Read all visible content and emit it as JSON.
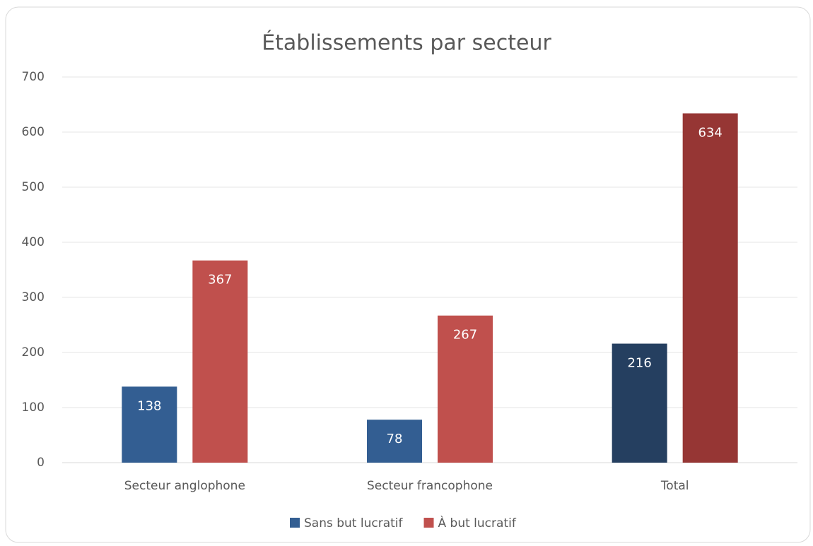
{
  "chart_data": {
    "type": "bar",
    "title": "Établissements par secteur",
    "categories": [
      "Secteur anglophone",
      "Secteur francophone",
      "Total"
    ],
    "series": [
      {
        "name": "Sans but lucratif",
        "color": "#335e92",
        "colors": [
          "#335e92",
          "#335e92",
          "#253f60"
        ],
        "values": [
          138,
          78,
          216
        ]
      },
      {
        "name": "À but lucratif",
        "color": "#c0504d",
        "colors": [
          "#c0504d",
          "#c0504d",
          "#963634"
        ],
        "values": [
          367,
          267,
          634
        ]
      }
    ],
    "ylim": [
      0,
      700
    ],
    "yticks": [
      0,
      100,
      200,
      300,
      400,
      500,
      600,
      700
    ],
    "grid": true,
    "legend": "bottom"
  }
}
